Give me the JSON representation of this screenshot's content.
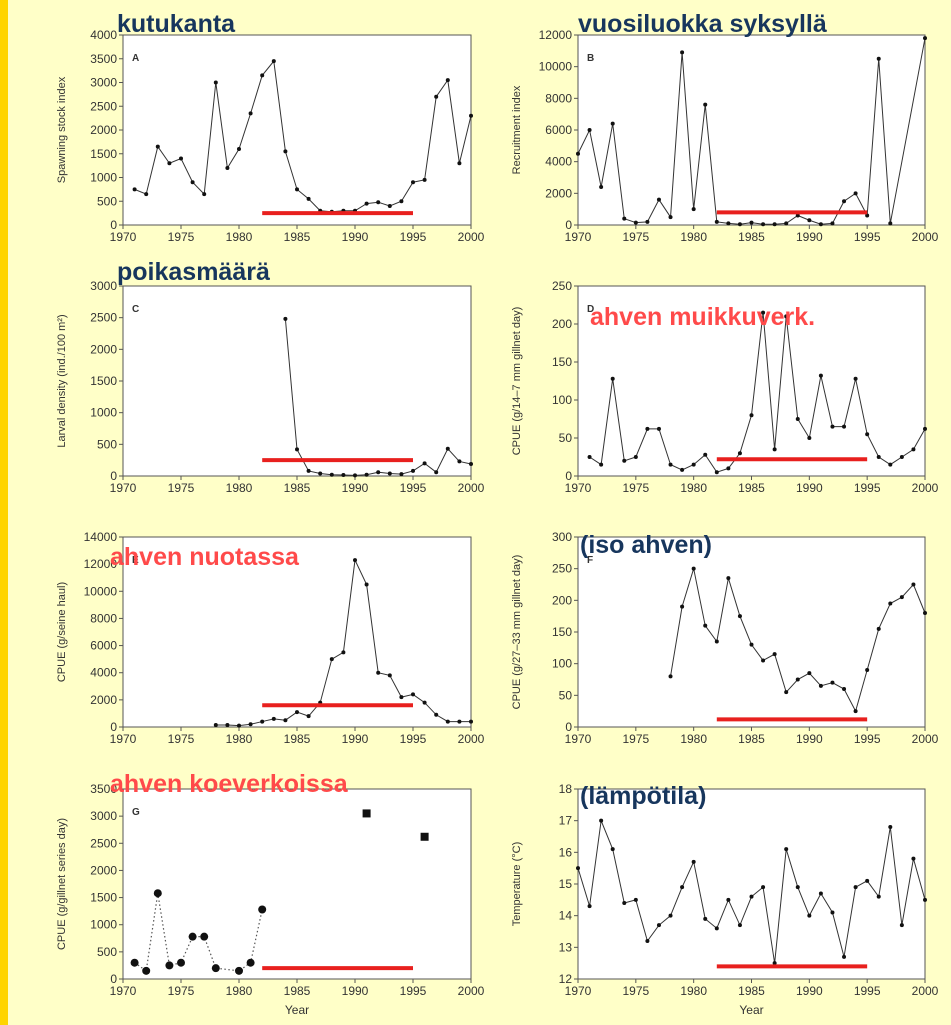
{
  "slide": {
    "captions": [
      {
        "text": "kutukanta",
        "color": "#17365d"
      },
      {
        "text": "vuosiluokka syksyllä",
        "color": "#17365d"
      },
      {
        "text": "poikasmäärä",
        "color": "#17365d"
      },
      {
        "text": "ahven muikkuverk.",
        "color": "#ff4a4a"
      },
      {
        "text": "ahven nuotassa",
        "color": "#ff4a4a"
      },
      {
        "text": "(iso ahven)",
        "color": "#17365d"
      },
      {
        "text": "ahven koeverkoissa",
        "color": "#ff4a4a"
      },
      {
        "text": "(lämpötila)",
        "color": "#17365d"
      }
    ],
    "highlight_color": "#e8201e"
  },
  "chart_data": [
    {
      "type": "line",
      "panel_letter": "A",
      "ylabel": "Spawning stock index",
      "xlabel": "",
      "xlim": [
        1970,
        2000
      ],
      "ylim": [
        0,
        4000
      ],
      "xticks": [
        1970,
        1975,
        1980,
        1985,
        1990,
        1995,
        2000
      ],
      "yticks": [
        0,
        500,
        1000,
        1500,
        2000,
        2500,
        3000,
        3500,
        4000
      ],
      "x": [
        1971,
        1972,
        1973,
        1974,
        1975,
        1976,
        1977,
        1978,
        1979,
        1980,
        1981,
        1982,
        1983,
        1984,
        1985,
        1986,
        1987,
        1988,
        1989,
        1990,
        1991,
        1992,
        1993,
        1994,
        1995,
        1996,
        1997,
        1998,
        1999,
        2000
      ],
      "values": [
        750,
        650,
        1650,
        1300,
        1400,
        900,
        650,
        3000,
        1200,
        1600,
        2350,
        3150,
        3450,
        1550,
        750,
        550,
        300,
        280,
        300,
        300,
        450,
        480,
        400,
        500,
        900,
        950,
        2700,
        3050,
        1300,
        2300
      ],
      "highlight": {
        "x": [
          1982,
          1995
        ],
        "y": 250
      }
    },
    {
      "type": "line",
      "panel_letter": "B",
      "ylabel": "Recruitment index",
      "xlabel": "",
      "xlim": [
        1970,
        2000
      ],
      "ylim": [
        0,
        12000
      ],
      "xticks": [
        1970,
        1975,
        1980,
        1985,
        1990,
        1995,
        2000
      ],
      "yticks": [
        0,
        2000,
        4000,
        6000,
        8000,
        10000,
        12000
      ],
      "x": [
        1970,
        1971,
        1972,
        1973,
        1974,
        1975,
        1976,
        1977,
        1978,
        1979,
        1980,
        1981,
        1982,
        1983,
        1984,
        1985,
        1986,
        1987,
        1988,
        1989,
        1990,
        1991,
        1992,
        1993,
        1994,
        1995,
        1996,
        1997,
        2000
      ],
      "values": [
        4500,
        6000,
        2400,
        6400,
        400,
        150,
        200,
        1600,
        500,
        10900,
        1000,
        7600,
        200,
        100,
        50,
        150,
        50,
        50,
        100,
        600,
        300,
        50,
        100,
        1500,
        2000,
        600,
        10500,
        100,
        11800
      ],
      "highlight": {
        "x": [
          1982,
          1995
        ],
        "y": 800
      }
    },
    {
      "type": "line",
      "panel_letter": "C",
      "ylabel": "Larval density (ind./100 m²)",
      "xlabel": "",
      "xlim": [
        1970,
        2000
      ],
      "ylim": [
        0,
        3000
      ],
      "xticks": [
        1970,
        1975,
        1980,
        1985,
        1990,
        1995,
        2000
      ],
      "yticks": [
        0,
        500,
        1000,
        1500,
        2000,
        2500,
        3000
      ],
      "x": [
        1984,
        1985,
        1986,
        1987,
        1988,
        1989,
        1990,
        1991,
        1992,
        1993,
        1994,
        1995,
        1996,
        1997,
        1998,
        1999,
        2000
      ],
      "values": [
        2480,
        420,
        80,
        40,
        20,
        15,
        10,
        20,
        60,
        40,
        30,
        80,
        200,
        60,
        430,
        230,
        190
      ],
      "highlight": {
        "x": [
          1982,
          1995
        ],
        "y": 250
      }
    },
    {
      "type": "line",
      "panel_letter": "D",
      "ylabel": "CPUE (g/14–7 mm gillnet day)",
      "xlabel": "",
      "xlim": [
        1970,
        2000
      ],
      "ylim": [
        0,
        250
      ],
      "xticks": [
        1970,
        1975,
        1980,
        1985,
        1990,
        1995,
        2000
      ],
      "yticks": [
        0,
        50,
        100,
        150,
        200,
        250
      ],
      "x": [
        1971,
        1972,
        1973,
        1974,
        1975,
        1976,
        1977,
        1978,
        1979,
        1980,
        1981,
        1982,
        1983,
        1984,
        1985,
        1986,
        1987,
        1988,
        1989,
        1990,
        1991,
        1992,
        1993,
        1994,
        1995,
        1996,
        1997,
        1998,
        1999,
        2000
      ],
      "values": [
        25,
        15,
        128,
        20,
        25,
        62,
        62,
        15,
        8,
        15,
        28,
        5,
        10,
        30,
        80,
        215,
        35,
        210,
        75,
        50,
        132,
        65,
        65,
        128,
        55,
        25,
        15,
        25,
        35,
        62
      ],
      "highlight": {
        "x": [
          1982,
          1995
        ],
        "y": 22
      }
    },
    {
      "type": "line",
      "panel_letter": "E",
      "ylabel": "CPUE (g/seine haul)",
      "xlabel": "",
      "xlim": [
        1970,
        2000
      ],
      "ylim": [
        0,
        14000
      ],
      "xticks": [
        1970,
        1975,
        1980,
        1985,
        1990,
        1995,
        2000
      ],
      "yticks": [
        0,
        2000,
        4000,
        6000,
        8000,
        10000,
        12000,
        14000
      ],
      "x": [
        1978,
        1979,
        1980,
        1981,
        1982,
        1983,
        1984,
        1985,
        1986,
        1987,
        1988,
        1989,
        1990,
        1991,
        1992,
        1993,
        1994,
        1995,
        1996,
        1997,
        1998,
        1999,
        2000
      ],
      "values": [
        150,
        150,
        100,
        200,
        400,
        600,
        500,
        1100,
        800,
        1800,
        5000,
        5500,
        12300,
        10500,
        4000,
        3800,
        2200,
        2400,
        1800,
        900,
        400,
        400,
        400
      ],
      "highlight": {
        "x": [
          1982,
          1995
        ],
        "y": 1600
      }
    },
    {
      "type": "line",
      "panel_letter": "F",
      "ylabel": "CPUE (g/27–33 mm gillnet day)",
      "xlabel": "",
      "xlim": [
        1970,
        2000
      ],
      "ylim": [
        0,
        300
      ],
      "xticks": [
        1970,
        1975,
        1980,
        1985,
        1990,
        1995,
        2000
      ],
      "yticks": [
        0,
        50,
        100,
        150,
        200,
        250,
        300
      ],
      "x": [
        1978,
        1979,
        1980,
        1981,
        1982,
        1983,
        1984,
        1985,
        1986,
        1987,
        1988,
        1989,
        1990,
        1991,
        1992,
        1993,
        1994,
        1995,
        1996,
        1997,
        1998,
        1999,
        2000
      ],
      "values": [
        80,
        190,
        250,
        160,
        135,
        235,
        175,
        130,
        105,
        115,
        55,
        75,
        85,
        65,
        70,
        60,
        25,
        90,
        155,
        195,
        205,
        225,
        180
      ],
      "highlight": {
        "x": [
          1982,
          1995
        ],
        "y": 12
      }
    },
    {
      "type": "scatter",
      "panel_letter": "G",
      "ylabel": "CPUE (g/gillnet series day)",
      "xlabel": "Year",
      "xlim": [
        1970,
        2000
      ],
      "ylim": [
        0,
        3500
      ],
      "xticks": [
        1970,
        1975,
        1980,
        1985,
        1990,
        1995,
        2000
      ],
      "yticks": [
        0,
        500,
        1000,
        1500,
        2000,
        2500,
        3000,
        3500
      ],
      "x": [
        1971,
        1972,
        1973,
        1974,
        1975,
        1976,
        1977,
        1978,
        1980,
        1981,
        1982,
        1991,
        1996
      ],
      "values": [
        300,
        150,
        1580,
        250,
        300,
        780,
        780,
        200,
        150,
        300,
        1280,
        3050,
        2620
      ],
      "dotted_segment_until": 1982,
      "highlight": {
        "x": [
          1982,
          1995
        ],
        "y": 200
      }
    },
    {
      "type": "line",
      "panel_letter": "",
      "ylabel": "Temperature (°C)",
      "xlabel": "Year",
      "xlim": [
        1970,
        2000
      ],
      "ylim": [
        12,
        18
      ],
      "xticks": [
        1970,
        1975,
        1980,
        1985,
        1990,
        1995,
        2000
      ],
      "yticks": [
        12,
        13,
        14,
        15,
        16,
        17,
        18
      ],
      "x": [
        1970,
        1971,
        1972,
        1973,
        1974,
        1975,
        1976,
        1977,
        1978,
        1979,
        1980,
        1981,
        1982,
        1983,
        1984,
        1985,
        1986,
        1987,
        1988,
        1989,
        1990,
        1991,
        1992,
        1993,
        1994,
        1995,
        1996,
        1997,
        1998,
        1999,
        2000
      ],
      "values": [
        15.5,
        14.3,
        17.0,
        16.1,
        14.4,
        14.5,
        13.2,
        13.7,
        14.0,
        14.9,
        15.7,
        13.9,
        13.6,
        14.5,
        13.7,
        14.6,
        14.9,
        12.5,
        16.1,
        14.9,
        14.0,
        14.7,
        14.1,
        12.7,
        14.9,
        15.1,
        14.6,
        16.8,
        13.7,
        15.8,
        14.5
      ],
      "highlight": {
        "x": [
          1982,
          1995
        ],
        "y": 12.4
      }
    }
  ]
}
